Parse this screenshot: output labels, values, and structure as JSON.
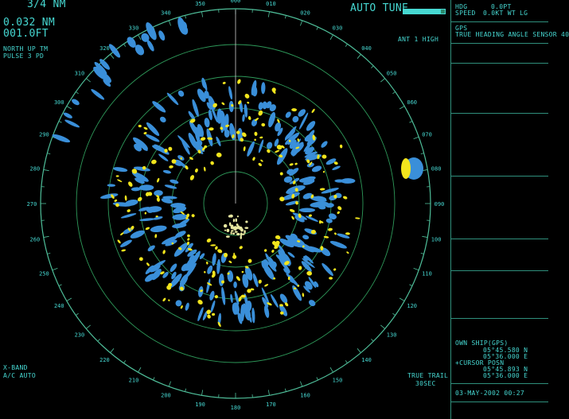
{
  "range": {
    "top": "3/4 NM",
    "value": "0.032 NM",
    "sub": "001.0FT"
  },
  "mode": {
    "line1": "NORTH UP TM",
    "line2": "PULSE 3 PD"
  },
  "tune": {
    "label": "AUTO TUNE",
    "level": 0.9
  },
  "ant": {
    "label": "ANT 1 HIGH"
  },
  "bottom_left": {
    "line1": "X-BAND",
    "line2": "A/C AUTO"
  },
  "trails": {
    "line1": "TRUE TRAIL",
    "line2": "30SEC"
  },
  "bearing_labels": [
    "000",
    "010",
    "020",
    "030",
    "040",
    "050",
    "060",
    "070",
    "080",
    "090",
    "100",
    "110",
    "120",
    "130",
    "140",
    "150",
    "160",
    "170",
    "180",
    "190",
    "200",
    "210",
    "220",
    "230",
    "240",
    "250",
    "260",
    "270",
    "280",
    "290",
    "300",
    "310",
    "320",
    "330",
    "340",
    "350"
  ],
  "panel": {
    "hdg_label": "HDG",
    "spd_label": "SPEED",
    "hdg_value": "0.0PT",
    "spd_value": "0.0KT WT LG",
    "gps_label": "GPS",
    "gps_value": "TRUE HEADING ANGLE SENSOR 40",
    "own_ship_label": "OWN SHIP(GPS)",
    "own_ship_1": "05°45.580 N",
    "own_ship_2": "05°36.000 E",
    "cursor_label": "+CURSOR POSN",
    "cursor_1": "05°45.893 N",
    "cursor_2": "05°36.000 E",
    "datetime": "03-MAY-2002 00:27"
  },
  "colors": {
    "ring": "#2e9a5a",
    "echo_strong": "#f2e51d",
    "echo_weak": "#3a8fd9",
    "text": "#46d8d2"
  }
}
